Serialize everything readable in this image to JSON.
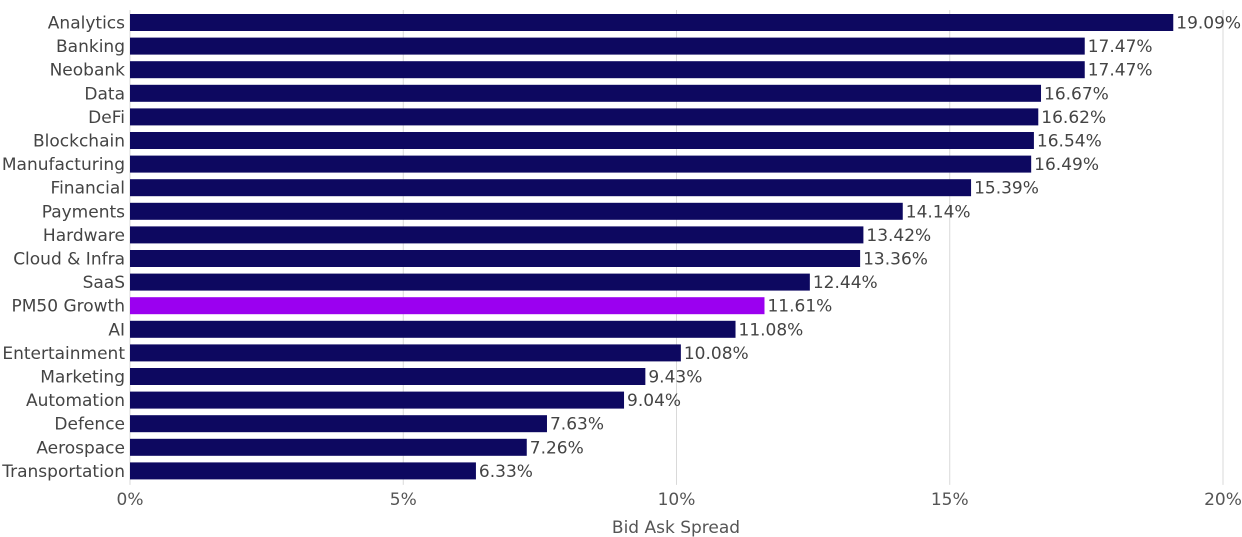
{
  "chart_data": {
    "type": "bar",
    "orientation": "horizontal",
    "title": "",
    "xlabel": "Bid Ask Spread",
    "ylabel": "",
    "xlim": [
      0,
      20
    ],
    "ticks": [
      0,
      5,
      10,
      15,
      20
    ],
    "tick_labels": [
      "0%",
      "5%",
      "10%",
      "15%",
      "20%"
    ],
    "grid": true,
    "categories": [
      "Analytics",
      "Banking",
      "Neobank",
      "Data",
      "DeFi",
      "Blockchain",
      "Manufacturing",
      "Financial",
      "Payments",
      "Hardware",
      "Cloud & Infra",
      "SaaS",
      "PM50 Growth",
      "AI",
      "Entertainment",
      "Marketing",
      "Automation",
      "Defence",
      "Aerospace",
      "Transportation"
    ],
    "values": [
      19.09,
      17.47,
      17.47,
      16.67,
      16.62,
      16.54,
      16.49,
      15.39,
      14.14,
      13.42,
      13.36,
      12.44,
      11.61,
      11.08,
      10.08,
      9.43,
      9.04,
      7.63,
      7.26,
      6.33
    ],
    "value_labels": [
      "19.09%",
      "17.47%",
      "17.47%",
      "16.67%",
      "16.62%",
      "16.54%",
      "16.49%",
      "15.39%",
      "14.14%",
      "13.42%",
      "13.36%",
      "12.44%",
      "11.61%",
      "11.08%",
      "10.08%",
      "9.43%",
      "9.04%",
      "7.63%",
      "7.26%",
      "6.33%"
    ],
    "highlight_category": "PM50 Growth",
    "colors": {
      "bar": "#0d0860",
      "highlight": "#9b00f0"
    }
  }
}
